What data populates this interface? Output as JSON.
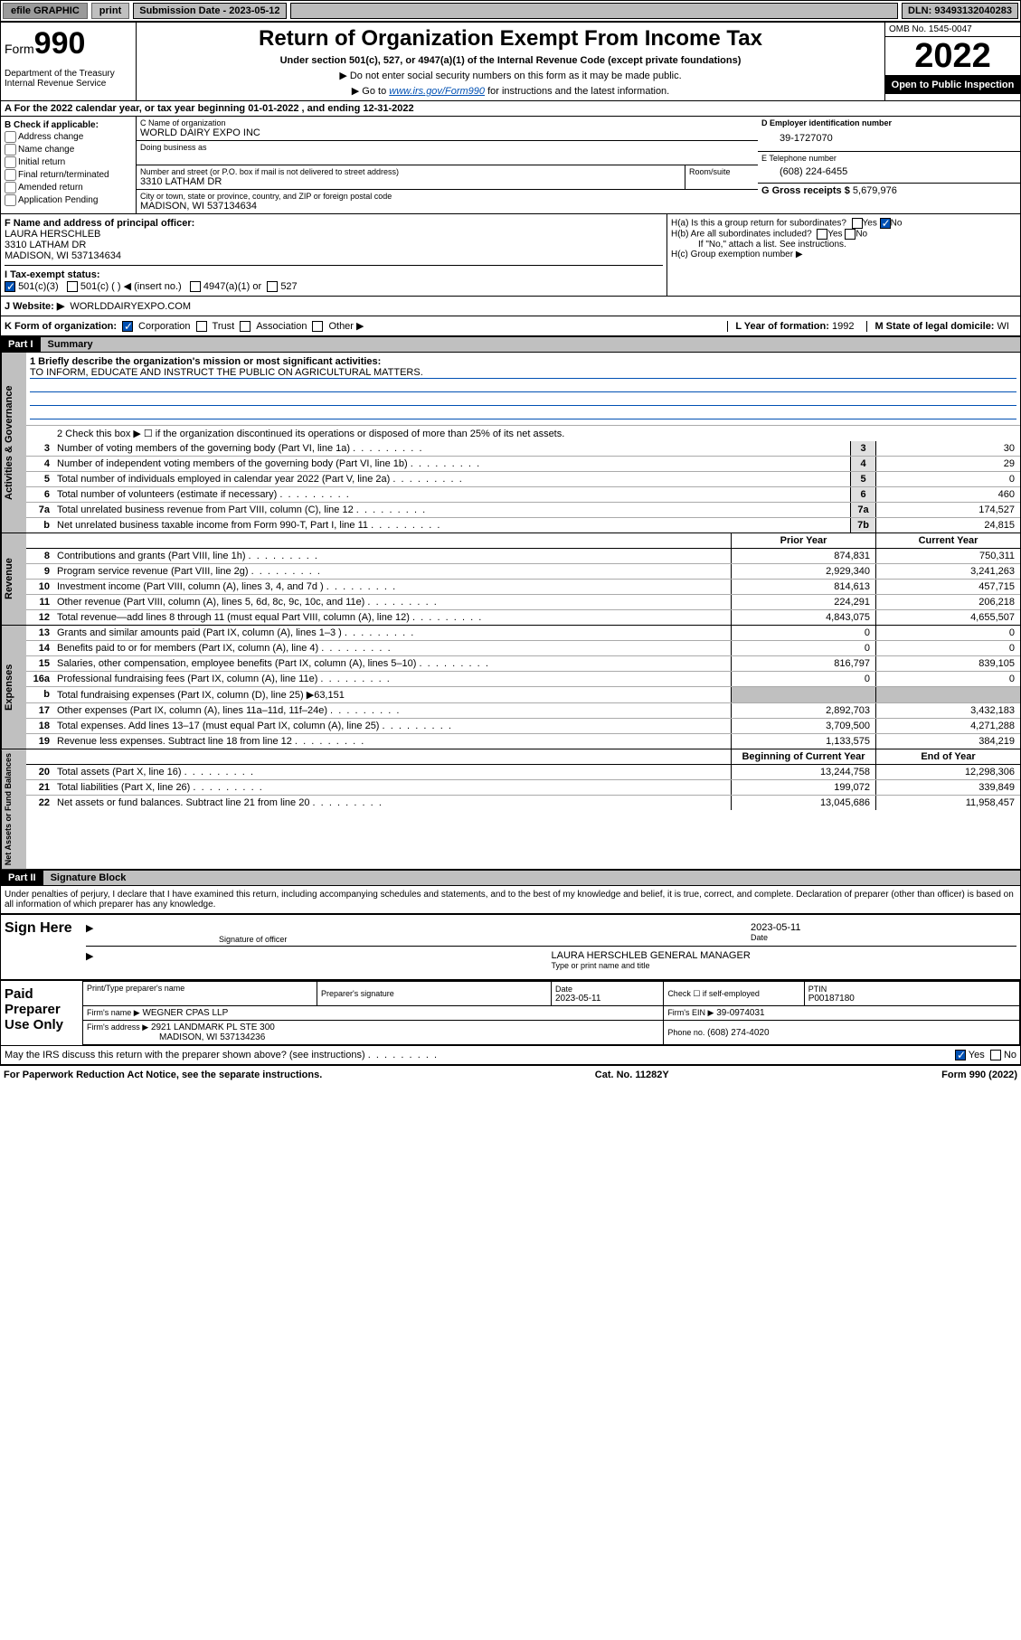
{
  "topbar": {
    "efile": "efile GRAPHIC",
    "print": "print",
    "subdate_label": "Submission Date - 2023-05-12",
    "dln": "DLN: 93493132040283"
  },
  "header": {
    "form_prefix": "Form",
    "form_number": "990",
    "title": "Return of Organization Exempt From Income Tax",
    "subtitle": "Under section 501(c), 527, or 4947(a)(1) of the Internal Revenue Code (except private foundations)",
    "note1": "▶ Do not enter social security numbers on this form as it may be made public.",
    "note2_pre": "▶ Go to ",
    "note2_link": "www.irs.gov/Form990",
    "note2_post": " for instructions and the latest information.",
    "dept": "Department of the Treasury Internal Revenue Service",
    "omb": "OMB No. 1545-0047",
    "taxyear": "2022",
    "inspect": "Open to Public Inspection"
  },
  "sectionA": "A For the 2022 calendar year, or tax year beginning 01-01-2022   , and ending 12-31-2022",
  "boxB": {
    "label": "B Check if applicable:",
    "items": [
      "Address change",
      "Name change",
      "Initial return",
      "Final return/terminated",
      "Amended return",
      "Application Pending"
    ]
  },
  "boxC": {
    "label": "C Name of organization",
    "name": "WORLD DAIRY EXPO INC",
    "dba_label": "Doing business as",
    "street_label": "Number and street (or P.O. box if mail is not delivered to street address)",
    "room_label": "Room/suite",
    "street": "3310 LATHAM DR",
    "city_label": "City or town, state or province, country, and ZIP or foreign postal code",
    "city": "MADISON, WI  537134634"
  },
  "boxD": {
    "label": "D Employer identification number",
    "value": "39-1727070"
  },
  "boxE": {
    "label": "E Telephone number",
    "value": "(608) 224-6455"
  },
  "boxG": {
    "label": "G Gross receipts $",
    "value": "5,679,976"
  },
  "boxF": {
    "label": "F Name and address of principal officer:",
    "name": "LAURA HERSCHLEB",
    "addr1": "3310 LATHAM DR",
    "addr2": "MADISON, WI  537134634"
  },
  "boxH": {
    "a": "H(a)  Is this a group return for subordinates?",
    "b": "H(b)  Are all subordinates included?",
    "note": "If \"No,\" attach a list. See instructions.",
    "c": "H(c)  Group exemption number ▶",
    "yes": "Yes",
    "no": "No"
  },
  "boxI": {
    "label": "I   Tax-exempt status:",
    "opt1": "501(c)(3)",
    "opt2": "501(c) (   ) ◀ (insert no.)",
    "opt3": "4947(a)(1) or",
    "opt4": "527"
  },
  "boxJ": {
    "label": "J   Website: ▶",
    "value": "WORLDDAIRYEXPO.COM"
  },
  "boxK": {
    "label": "K Form of organization:",
    "corp": "Corporation",
    "trust": "Trust",
    "assoc": "Association",
    "other": "Other ▶"
  },
  "boxL": {
    "label": "L Year of formation:",
    "value": "1992"
  },
  "boxM": {
    "label": "M State of legal domicile:",
    "value": "WI"
  },
  "part1": {
    "hdr": "Part I",
    "title": "Summary",
    "line1_label": "1   Briefly describe the organization's mission or most significant activities:",
    "mission": "TO INFORM, EDUCATE AND INSTRUCT THE PUBLIC ON AGRICULTURAL MATTERS.",
    "line2": "2   Check this box ▶ ☐  if the organization discontinued its operations or disposed of more than 25% of its net assets.",
    "governance_lines": [
      {
        "n": "3",
        "t": "Number of voting members of the governing body (Part VI, line 1a)",
        "box": "3",
        "v": "30"
      },
      {
        "n": "4",
        "t": "Number of independent voting members of the governing body (Part VI, line 1b)",
        "box": "4",
        "v": "29"
      },
      {
        "n": "5",
        "t": "Total number of individuals employed in calendar year 2022 (Part V, line 2a)",
        "box": "5",
        "v": "0"
      },
      {
        "n": "6",
        "t": "Total number of volunteers (estimate if necessary)",
        "box": "6",
        "v": "460"
      },
      {
        "n": "7a",
        "t": "Total unrelated business revenue from Part VIII, column (C), line 12",
        "box": "7a",
        "v": "174,527"
      },
      {
        "n": "b",
        "t": "Net unrelated business taxable income from Form 990-T, Part I, line 11",
        "box": "7b",
        "v": "24,815"
      }
    ],
    "prior_year": "Prior Year",
    "current_year": "Current Year",
    "revenue_lines": [
      {
        "n": "8",
        "t": "Contributions and grants (Part VIII, line 1h)",
        "py": "874,831",
        "cy": "750,311"
      },
      {
        "n": "9",
        "t": "Program service revenue (Part VIII, line 2g)",
        "py": "2,929,340",
        "cy": "3,241,263"
      },
      {
        "n": "10",
        "t": "Investment income (Part VIII, column (A), lines 3, 4, and 7d )",
        "py": "814,613",
        "cy": "457,715"
      },
      {
        "n": "11",
        "t": "Other revenue (Part VIII, column (A), lines 5, 6d, 8c, 9c, 10c, and 11e)",
        "py": "224,291",
        "cy": "206,218"
      },
      {
        "n": "12",
        "t": "Total revenue—add lines 8 through 11 (must equal Part VIII, column (A), line 12)",
        "py": "4,843,075",
        "cy": "4,655,507"
      }
    ],
    "expense_lines": [
      {
        "n": "13",
        "t": "Grants and similar amounts paid (Part IX, column (A), lines 1–3 )",
        "py": "0",
        "cy": "0"
      },
      {
        "n": "14",
        "t": "Benefits paid to or for members (Part IX, column (A), line 4)",
        "py": "0",
        "cy": "0"
      },
      {
        "n": "15",
        "t": "Salaries, other compensation, employee benefits (Part IX, column (A), lines 5–10)",
        "py": "816,797",
        "cy": "839,105"
      },
      {
        "n": "16a",
        "t": "Professional fundraising fees (Part IX, column (A), line 11e)",
        "py": "0",
        "cy": "0"
      },
      {
        "n": "b",
        "t": "Total fundraising expenses (Part IX, column (D), line 25) ▶63,151",
        "py": "",
        "cy": ""
      },
      {
        "n": "17",
        "t": "Other expenses (Part IX, column (A), lines 11a–11d, 11f–24e)",
        "py": "2,892,703",
        "cy": "3,432,183"
      },
      {
        "n": "18",
        "t": "Total expenses. Add lines 13–17 (must equal Part IX, column (A), line 25)",
        "py": "3,709,500",
        "cy": "4,271,288"
      },
      {
        "n": "19",
        "t": "Revenue less expenses. Subtract line 18 from line 12",
        "py": "1,133,575",
        "cy": "384,219"
      }
    ],
    "beg_year": "Beginning of Current Year",
    "end_year": "End of Year",
    "balance_lines": [
      {
        "n": "20",
        "t": "Total assets (Part X, line 16)",
        "py": "13,244,758",
        "cy": "12,298,306"
      },
      {
        "n": "21",
        "t": "Total liabilities (Part X, line 26)",
        "py": "199,072",
        "cy": "339,849"
      },
      {
        "n": "22",
        "t": "Net assets or fund balances. Subtract line 21 from line 20",
        "py": "13,045,686",
        "cy": "11,958,457"
      }
    ],
    "side_gov": "Activities & Governance",
    "side_rev": "Revenue",
    "side_exp": "Expenses",
    "side_bal": "Net Assets or Fund Balances"
  },
  "part2": {
    "hdr": "Part II",
    "title": "Signature Block",
    "decl": "Under penalties of perjury, I declare that I have examined this return, including accompanying schedules and statements, and to the best of my knowledge and belief, it is true, correct, and complete. Declaration of preparer (other than officer) is based on all information of which preparer has any knowledge.",
    "sign_here": "Sign Here",
    "sig_off": "Signature of officer",
    "sig_date": "Date",
    "sig_date_val": "2023-05-11",
    "officer_name": "LAURA HERSCHLEB  GENERAL MANAGER",
    "type_name": "Type or print name and title",
    "paid": "Paid Preparer Use Only",
    "prep_name": "Print/Type preparer's name",
    "prep_sig": "Preparer's signature",
    "prep_date_lbl": "Date",
    "prep_date": "2023-05-11",
    "check_self": "Check ☐ if self-employed",
    "ptin_lbl": "PTIN",
    "ptin": "P00187180",
    "firm_name_lbl": "Firm's name      ▶",
    "firm_name": "WEGNER CPAS LLP",
    "firm_ein_lbl": "Firm's EIN ▶",
    "firm_ein": "39-0974031",
    "firm_addr_lbl": "Firm's address ▶",
    "firm_addr1": "2921 LANDMARK PL STE 300",
    "firm_addr2": "MADISON, WI  537134236",
    "phone_lbl": "Phone no.",
    "phone": "(608) 274-4020",
    "may_irs": "May the IRS discuss this return with the preparer shown above? (see instructions)",
    "yes": "Yes",
    "no": "No"
  },
  "footer": {
    "paperwork": "For Paperwork Reduction Act Notice, see the separate instructions.",
    "cat": "Cat. No. 11282Y",
    "form": "Form 990 (2022)"
  },
  "colors": {
    "gray_bg": "#c0c0c0",
    "black": "#000000",
    "blue": "#0050b3",
    "check_blue": "#0050b3"
  }
}
